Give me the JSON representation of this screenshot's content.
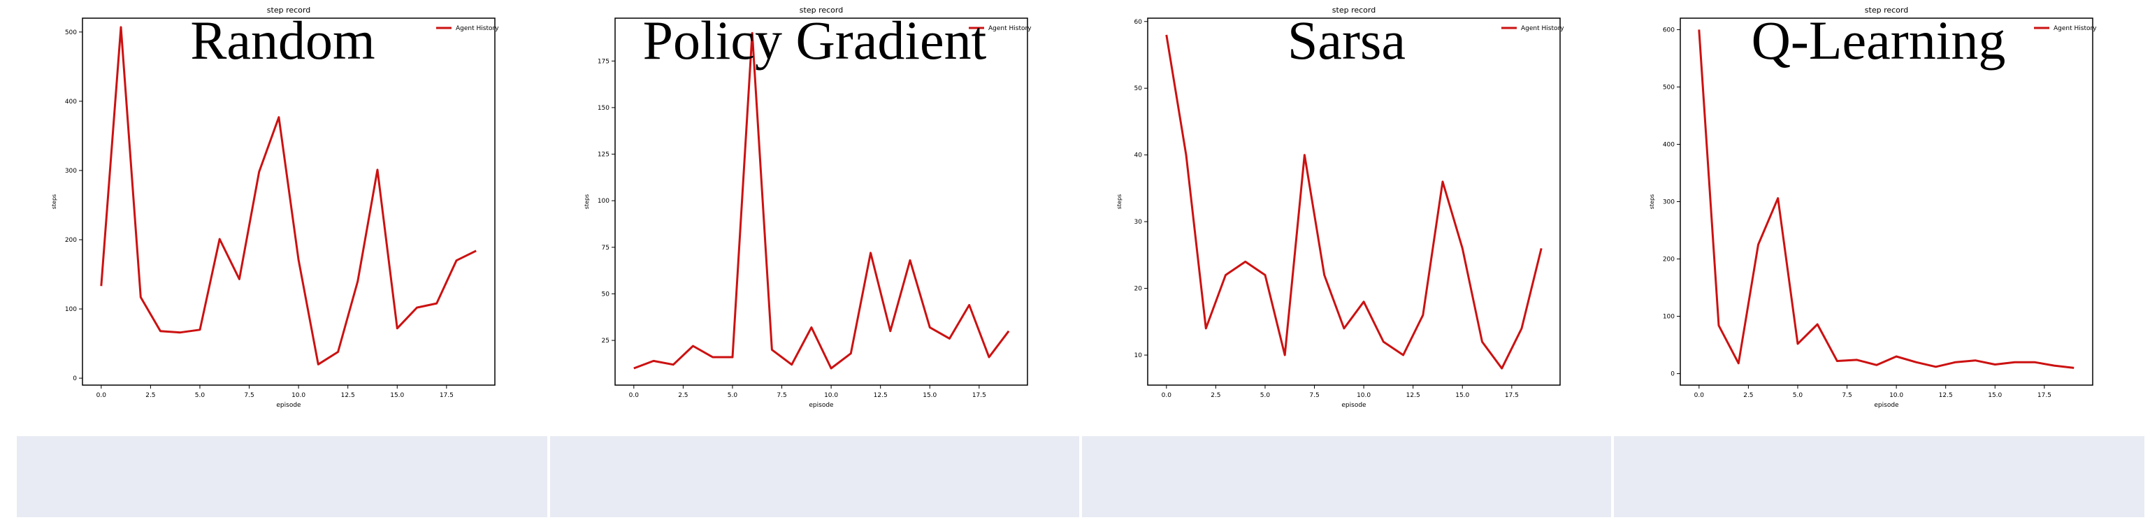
{
  "panels": [
    {
      "caption": "Random",
      "chart_data": {
        "type": "line",
        "title": "step record",
        "xlabel": "episode",
        "ylabel": "steps",
        "xlim": [
          -0.95,
          19.95
        ],
        "ylim": [
          -10,
          520
        ],
        "xticks": [
          0,
          2.5,
          5,
          7.5,
          10,
          12.5,
          15,
          17.5
        ],
        "xtick_labels": [
          "0.0",
          "2.5",
          "5.0",
          "7.5",
          "10.0",
          "12.5",
          "15.0",
          "17.5"
        ],
        "yticks": [
          0,
          100,
          200,
          300,
          400,
          500
        ],
        "ytick_labels": [
          "0",
          "100",
          "200",
          "300",
          "400",
          "500"
        ],
        "legend": "upper right",
        "series": [
          {
            "name": "Agent History",
            "color": "#cc1111",
            "x": [
              0,
              1,
              2,
              3,
              4,
              5,
              6,
              7,
              8,
              9,
              10,
              11,
              12,
              13,
              14,
              15,
              16,
              17,
              18,
              19
            ],
            "values": [
              133,
              507,
              117,
              68,
              66,
              70,
              201,
              143,
              298,
              377,
              171,
              20,
              38,
              140,
              301,
              72,
              102,
              108,
              170,
              184
            ]
          }
        ]
      }
    },
    {
      "caption": "Policy Gradient",
      "chart_data": {
        "type": "line",
        "title": "step record",
        "xlabel": "episode",
        "ylabel": "steps",
        "xlim": [
          -0.95,
          19.95
        ],
        "ylim": [
          1,
          198
        ],
        "xticks": [
          0,
          2.5,
          5,
          7.5,
          10,
          12.5,
          15,
          17.5
        ],
        "xtick_labels": [
          "0.0",
          "2.5",
          "5.0",
          "7.5",
          "10.0",
          "12.5",
          "15.0",
          "17.5"
        ],
        "yticks": [
          25,
          50,
          75,
          100,
          125,
          150,
          175
        ],
        "ytick_labels": [
          "25",
          "50",
          "75",
          "100",
          "125",
          "150",
          "175"
        ],
        "legend": "upper right",
        "series": [
          {
            "name": "Agent History",
            "color": "#cc1111",
            "x": [
              0,
              1,
              2,
              3,
              4,
              5,
              6,
              7,
              8,
              9,
              10,
              11,
              12,
              13,
              14,
              15,
              16,
              17,
              18,
              19
            ],
            "values": [
              10,
              14,
              12,
              22,
              16,
              16,
              190,
              20,
              12,
              32,
              10,
              18,
              72,
              30,
              68,
              32,
              26,
              44,
              16,
              30
            ]
          }
        ]
      }
    },
    {
      "caption": "Sarsa",
      "chart_data": {
        "type": "line",
        "title": "step record",
        "xlabel": "episode",
        "ylabel": "steps",
        "xlim": [
          -0.95,
          19.95
        ],
        "ylim": [
          5.5,
          60.5
        ],
        "xticks": [
          0,
          2.5,
          5,
          7.5,
          10,
          12.5,
          15,
          17.5
        ],
        "xtick_labels": [
          "0.0",
          "2.5",
          "5.0",
          "7.5",
          "10.0",
          "12.5",
          "15.0",
          "17.5"
        ],
        "yticks": [
          10,
          20,
          30,
          40,
          50,
          60
        ],
        "ytick_labels": [
          "10",
          "20",
          "30",
          "40",
          "50",
          "60"
        ],
        "legend": "upper right",
        "series": [
          {
            "name": "Agent History",
            "color": "#cc1111",
            "x": [
              0,
              1,
              2,
              3,
              4,
              5,
              6,
              7,
              8,
              9,
              10,
              11,
              12,
              13,
              14,
              15,
              16,
              17,
              18,
              19
            ],
            "values": [
              58,
              40,
              14,
              22,
              24,
              22,
              10,
              40,
              22,
              14,
              18,
              12,
              10,
              16,
              36,
              26,
              12,
              8,
              14,
              26
            ]
          }
        ]
      }
    },
    {
      "caption": "Q-Learning",
      "chart_data": {
        "type": "line",
        "title": "step record",
        "xlabel": "episode",
        "ylabel": "steps",
        "xlim": [
          -0.95,
          19.95
        ],
        "ylim": [
          -20,
          620
        ],
        "xticks": [
          0,
          2.5,
          5,
          7.5,
          10,
          12.5,
          15,
          17.5
        ],
        "xtick_labels": [
          "0.0",
          "2.5",
          "5.0",
          "7.5",
          "10.0",
          "12.5",
          "15.0",
          "17.5"
        ],
        "yticks": [
          0,
          100,
          200,
          300,
          400,
          500,
          600
        ],
        "ytick_labels": [
          "0",
          "100",
          "200",
          "300",
          "400",
          "500",
          "600"
        ],
        "legend": "upper right",
        "series": [
          {
            "name": "Agent History",
            "color": "#cc1111",
            "x": [
              0,
              1,
              2,
              3,
              4,
              5,
              6,
              7,
              8,
              9,
              10,
              11,
              12,
              13,
              14,
              15,
              16,
              17,
              18,
              19
            ],
            "values": [
              600,
              84,
              18,
              225,
              306,
              52,
              86,
              22,
              24,
              15,
              30,
              20,
              12,
              20,
              23,
              16,
              20,
              20,
              14,
              10
            ]
          }
        ]
      }
    }
  ]
}
